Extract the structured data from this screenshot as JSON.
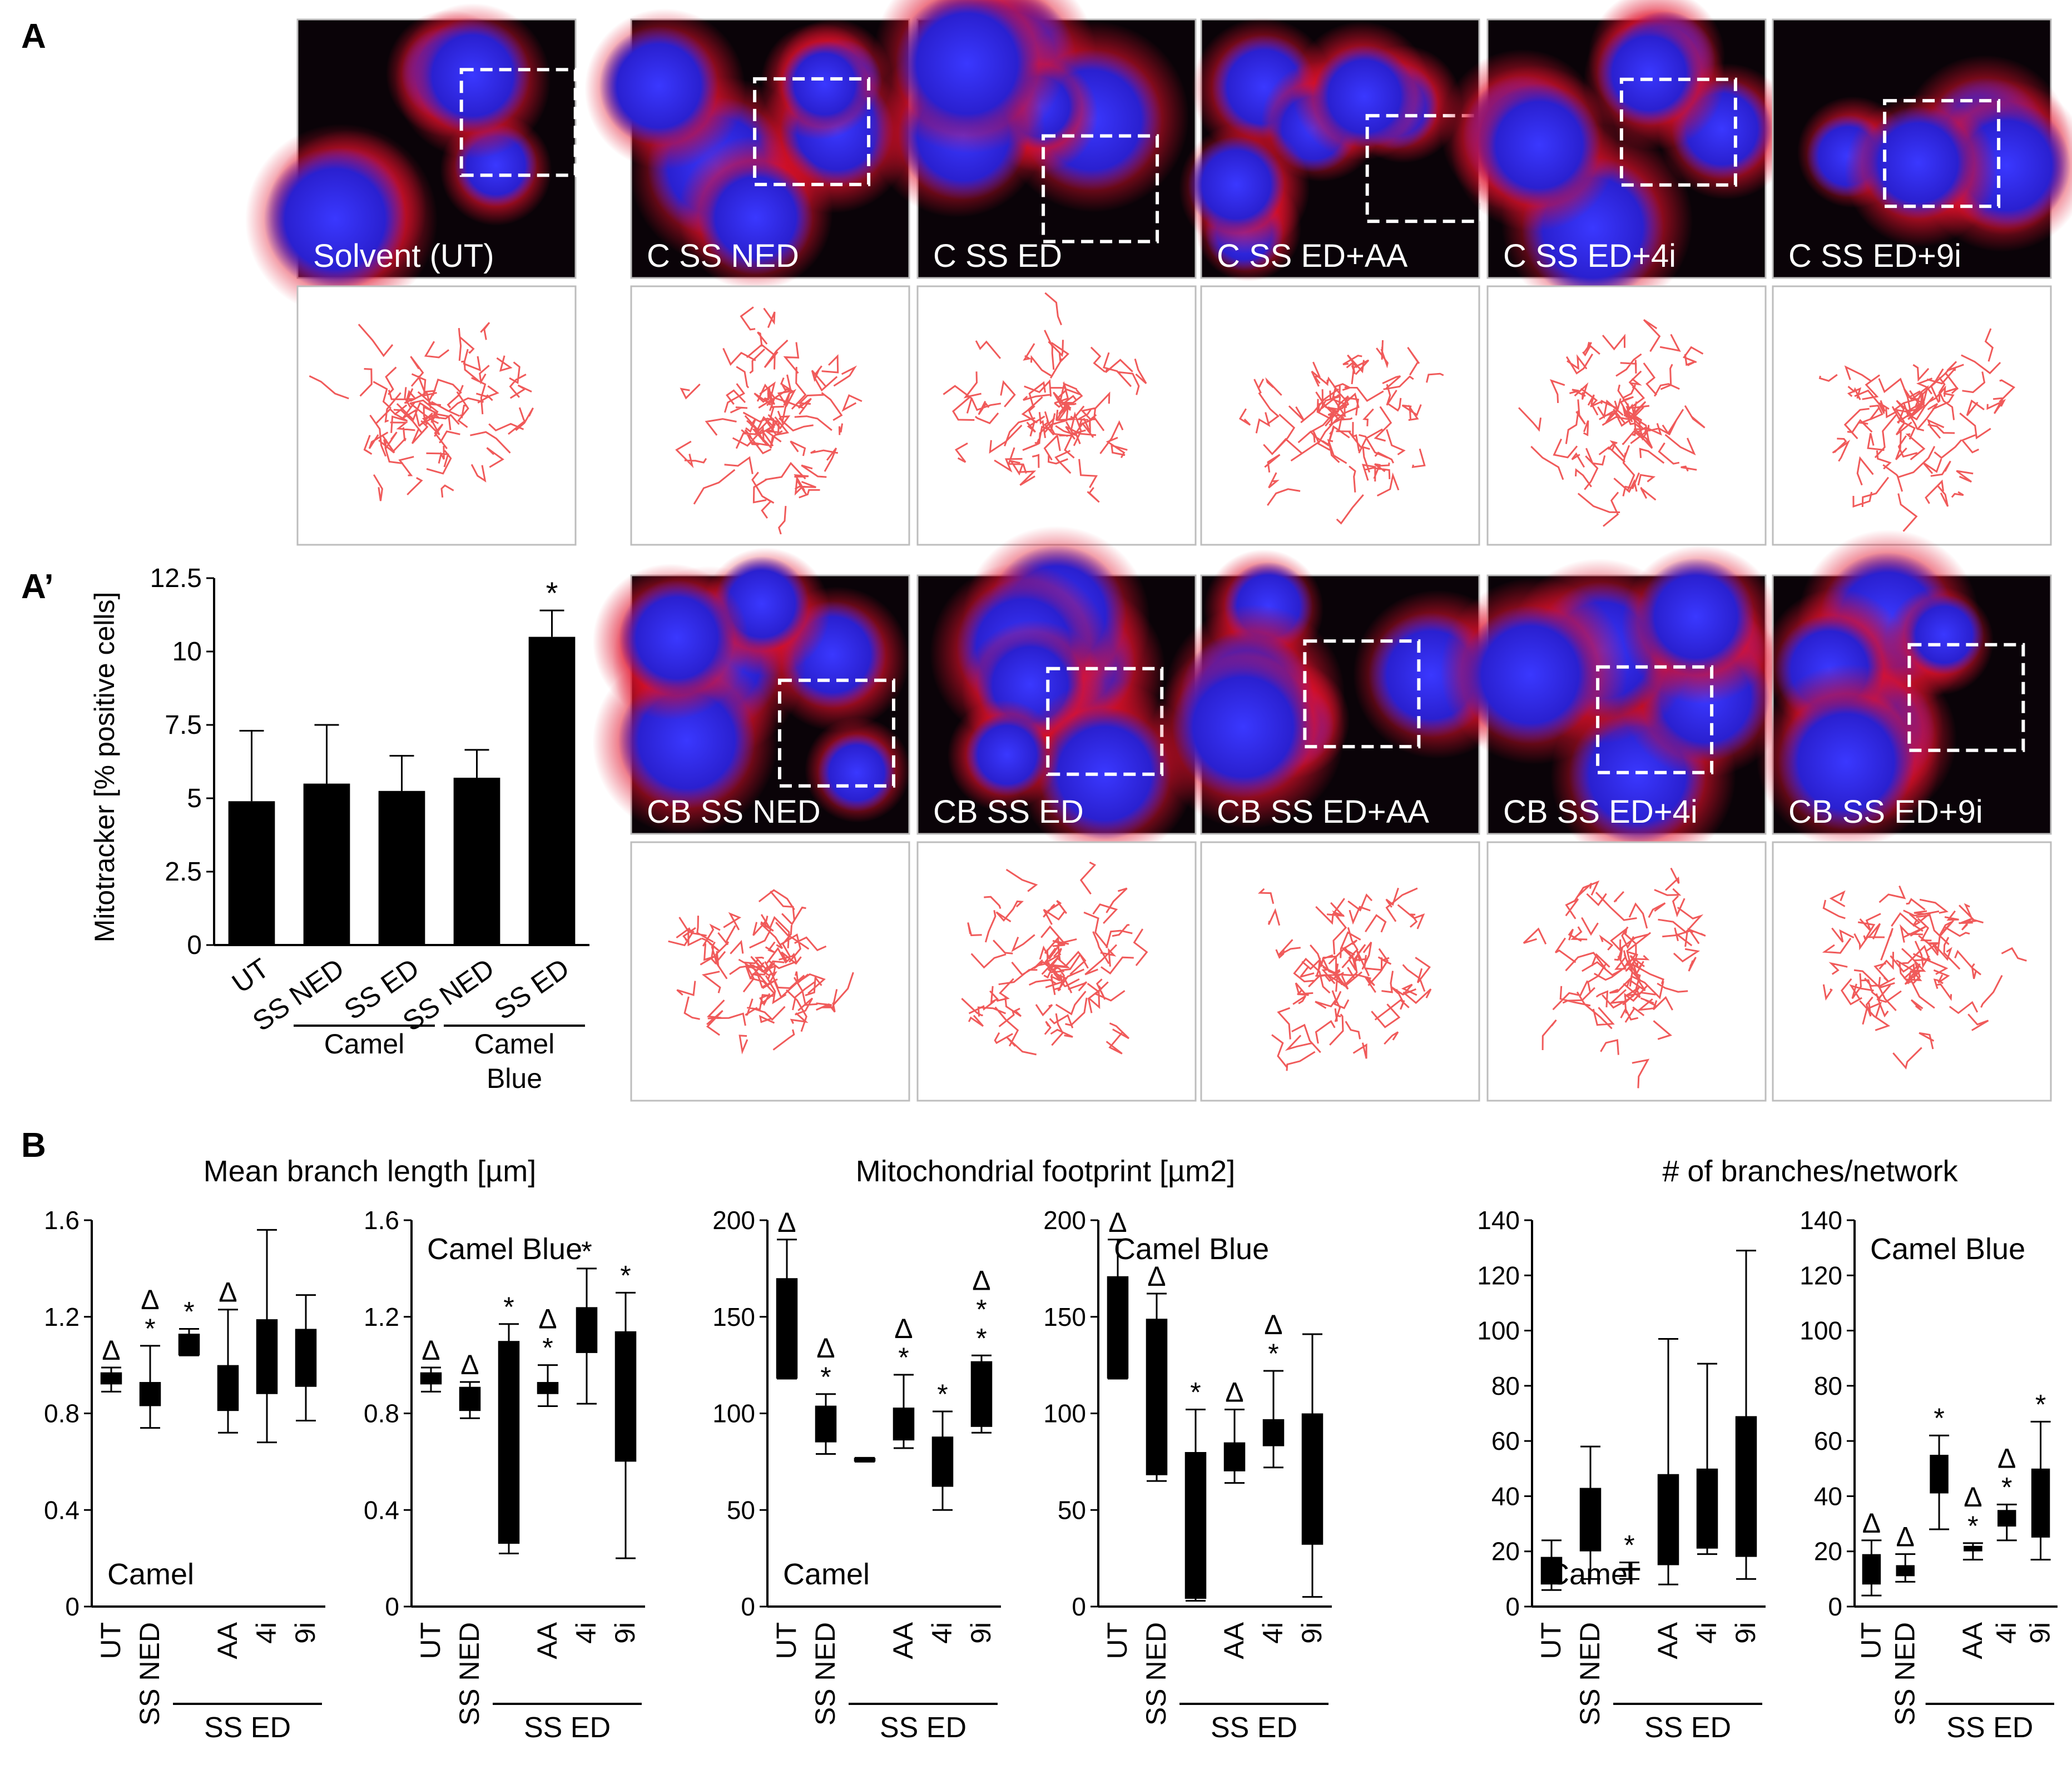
{
  "panel_letters": {
    "a": "A",
    "a_prime": "A’",
    "b": "B"
  },
  "micrographs": {
    "row1_labels": [
      "Solvent (UT)",
      "C SS NED",
      "C SS ED",
      "C SS ED+AA",
      "C SS ED+4i",
      "C SS ED+9i"
    ],
    "row2_labels": [
      "CB SS NED",
      "CB SS ED",
      "CB SS ED+AA",
      "CB SS ED+4i",
      "CB SS ED+9i"
    ],
    "colors": {
      "background": "#0a0308",
      "nucleus": "#2a20d0",
      "mitochondria": "#e0102a",
      "skeleton": "#f05a5a",
      "frame": "#bdbdbd"
    }
  },
  "chart_data": [
    {
      "id": "A_prime",
      "type": "bar",
      "ylabel": "Mitotracker [% positive cells]",
      "ylim": [
        0,
        12.5
      ],
      "yticks": [
        "0",
        "2.5",
        "5",
        "7.5",
        "10",
        "12.5"
      ],
      "categories": [
        "UT",
        "SS NED",
        "SS ED",
        "SS NED",
        "SS ED"
      ],
      "values": [
        4.9,
        5.5,
        5.25,
        5.7,
        10.5
      ],
      "error_upper": [
        7.3,
        7.5,
        6.45,
        6.65,
        11.4
      ],
      "significance": [
        "",
        "",
        "",
        "",
        "*"
      ],
      "groups": [
        {
          "label": "Camel",
          "from": 1,
          "to": 2
        },
        {
          "label": "Camel Blue",
          "from": 3,
          "to": 4
        }
      ],
      "bar_color": "#000000"
    },
    {
      "id": "B1",
      "type": "boxplot",
      "title": "Mean branch length [µm]",
      "inner_label": "Camel",
      "ylim": [
        0,
        1.6
      ],
      "yticks": [
        "0",
        "0.4",
        "0.8",
        "1.2",
        "1.6"
      ],
      "categories": [
        "UT",
        "SS NED",
        "SS ED",
        "AA",
        "4i",
        "9i"
      ],
      "whisker_low": [
        0.89,
        0.74,
        1.04,
        0.72,
        0.68,
        0.77
      ],
      "q1": [
        0.92,
        0.83,
        1.04,
        0.81,
        0.88,
        0.91
      ],
      "q3": [
        0.97,
        0.93,
        1.13,
        1.0,
        1.19,
        1.15
      ],
      "whisker_high": [
        0.99,
        1.08,
        1.15,
        1.23,
        1.56,
        1.29
      ],
      "marks": [
        [
          "Δ"
        ],
        [
          "Δ",
          "*"
        ],
        [
          "*"
        ],
        [
          "Δ"
        ],
        [],
        []
      ],
      "group_label": "SS ED",
      "group_from": 2,
      "group_to": 5
    },
    {
      "id": "B2",
      "type": "boxplot",
      "title": "",
      "inner_label": "Camel Blue",
      "ylim": [
        0,
        1.6
      ],
      "yticks": [
        "0",
        "0.4",
        "0.8",
        "1.2",
        "1.6"
      ],
      "categories": [
        "UT",
        "SS NED",
        "SS ED",
        "AA",
        "4i",
        "9i"
      ],
      "whisker_low": [
        0.89,
        0.78,
        0.22,
        0.83,
        0.84,
        0.2
      ],
      "q1": [
        0.92,
        0.81,
        0.26,
        0.88,
        1.05,
        0.6
      ],
      "q3": [
        0.97,
        0.91,
        1.1,
        0.93,
        1.24,
        1.14
      ],
      "whisker_high": [
        0.99,
        0.93,
        1.17,
        1.0,
        1.4,
        1.3
      ],
      "marks": [
        [
          "Δ"
        ],
        [
          "Δ"
        ],
        [
          "*"
        ],
        [
          "Δ",
          "*"
        ],
        [
          "*"
        ],
        [
          "*"
        ]
      ],
      "group_label": "SS ED",
      "group_from": 2,
      "group_to": 5
    },
    {
      "id": "B3",
      "type": "boxplot",
      "title": "Mitochondrial footprint [µm2]",
      "inner_label": "Camel",
      "ylim": [
        0,
        200
      ],
      "yticks": [
        "0",
        "50",
        "100",
        "150",
        "200"
      ],
      "categories": [
        "UT",
        "SS NED",
        "SS ED",
        "AA",
        "4i",
        "9i"
      ],
      "whisker_low": [
        118,
        79,
        75,
        82,
        50,
        90
      ],
      "q1": [
        118,
        85,
        75,
        86,
        62,
        93
      ],
      "q3": [
        170,
        104,
        77,
        103,
        88,
        127
      ],
      "whisker_high": [
        190,
        110,
        77,
        120,
        101,
        130
      ],
      "marks": [
        [
          "Δ"
        ],
        [
          "Δ",
          "*"
        ],
        [],
        [
          "Δ",
          "*"
        ],
        [
          "*"
        ],
        [
          "Δ",
          "*",
          "*"
        ]
      ],
      "group_label": "SS ED",
      "group_from": 2,
      "group_to": 5
    },
    {
      "id": "B4",
      "type": "boxplot",
      "title": "",
      "inner_label": "Camel Blue",
      "ylim": [
        0,
        200
      ],
      "yticks": [
        "0",
        "50",
        "100",
        "150",
        "200"
      ],
      "categories": [
        "UT",
        "SS NED",
        "SS ED",
        "AA",
        "4i",
        "9i"
      ],
      "whisker_low": [
        118,
        65,
        3,
        64,
        72,
        5
      ],
      "q1": [
        118,
        68,
        4,
        70,
        83,
        32
      ],
      "q3": [
        171,
        149,
        80,
        85,
        97,
        100
      ],
      "whisker_high": [
        190,
        162,
        102,
        102,
        122,
        141
      ],
      "marks": [
        [
          "Δ"
        ],
        [
          "Δ"
        ],
        [
          "*"
        ],
        [
          "Δ"
        ],
        [
          "Δ",
          "*"
        ],
        []
      ],
      "group_label": "SS ED",
      "group_from": 2,
      "group_to": 5
    },
    {
      "id": "B5",
      "type": "boxplot",
      "title": "# of branches/network",
      "inner_label": "Camel",
      "ylim": [
        0,
        140
      ],
      "yticks": [
        "0",
        "20",
        "40",
        "60",
        "80",
        "100",
        "120",
        "140"
      ],
      "categories": [
        "UT",
        "SS NED",
        "SS ED",
        "AA",
        "4i",
        "9i"
      ],
      "whisker_low": [
        6,
        10,
        10,
        8,
        19,
        10
      ],
      "q1": [
        8,
        20,
        13,
        15,
        21,
        18
      ],
      "q3": [
        18,
        43,
        14,
        48,
        50,
        69
      ],
      "whisker_high": [
        24,
        58,
        16,
        97,
        88,
        129
      ],
      "marks": [
        [],
        [],
        [
          "*"
        ],
        [],
        [],
        []
      ],
      "group_label": "SS ED",
      "group_from": 2,
      "group_to": 5
    },
    {
      "id": "B6",
      "type": "boxplot",
      "title": "",
      "inner_label": "Camel Blue",
      "ylim": [
        0,
        140
      ],
      "yticks": [
        "0",
        "20",
        "40",
        "60",
        "80",
        "100",
        "120",
        "140"
      ],
      "categories": [
        "UT",
        "SS NED",
        "SS ED",
        "AA",
        "4i",
        "9i"
      ],
      "whisker_low": [
        4,
        9,
        28,
        17,
        24,
        17
      ],
      "q1": [
        8,
        11,
        41,
        20,
        29,
        25
      ],
      "q3": [
        19,
        15,
        55,
        22,
        35,
        50
      ],
      "whisker_high": [
        24,
        19,
        62,
        23,
        37,
        67
      ],
      "marks": [
        [
          "Δ"
        ],
        [
          "Δ"
        ],
        [
          "*"
        ],
        [
          "Δ",
          "*"
        ],
        [
          "Δ",
          "*"
        ],
        [
          "*"
        ]
      ],
      "group_label": "SS ED",
      "group_from": 2,
      "group_to": 5
    }
  ]
}
